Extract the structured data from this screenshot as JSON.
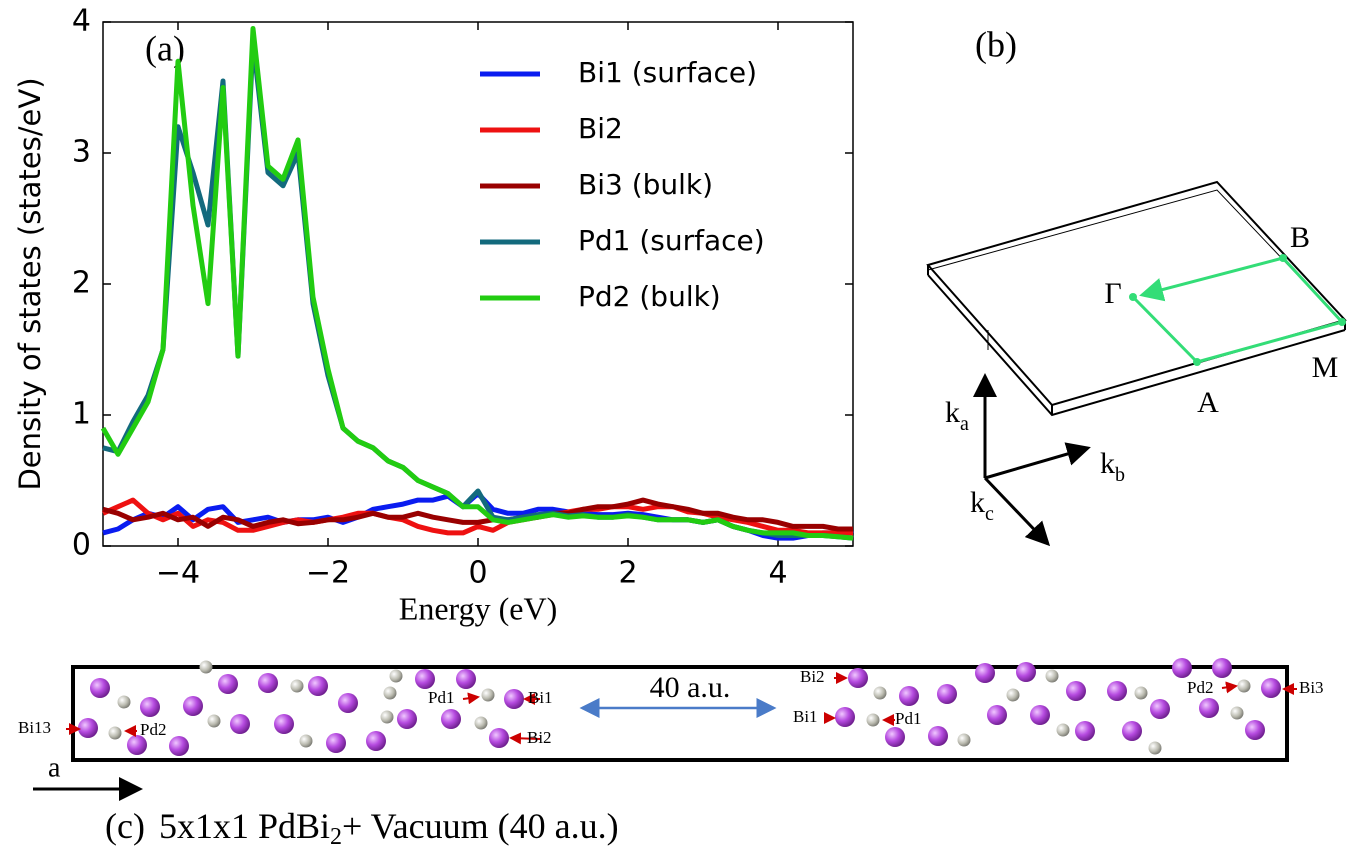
{
  "chart_data": {
    "type": "line",
    "panel_label": "(a)",
    "x_label": "Energy (eV)",
    "y_label": "Density of states (states/eV)",
    "x": [
      -5.0,
      -4.8,
      -4.6,
      -4.4,
      -4.2,
      -4.0,
      -3.8,
      -3.6,
      -3.4,
      -3.2,
      -3.0,
      -2.8,
      -2.6,
      -2.4,
      -2.2,
      -2.0,
      -1.8,
      -1.6,
      -1.4,
      -1.2,
      -1.0,
      -0.8,
      -0.6,
      -0.4,
      -0.2,
      0.0,
      0.2,
      0.4,
      0.6,
      0.8,
      1.0,
      1.2,
      1.4,
      1.6,
      1.8,
      2.0,
      2.2,
      2.4,
      2.6,
      2.8,
      3.0,
      3.2,
      3.4,
      3.6,
      3.8,
      4.0,
      4.2,
      4.4,
      4.6,
      4.8,
      5.0
    ],
    "series": [
      {
        "name": "Bi1 (surface)",
        "color": "#0a1cf0",
        "values": [
          0.1,
          0.13,
          0.2,
          0.25,
          0.22,
          0.3,
          0.2,
          0.28,
          0.3,
          0.18,
          0.2,
          0.22,
          0.18,
          0.2,
          0.2,
          0.22,
          0.18,
          0.22,
          0.28,
          0.3,
          0.32,
          0.35,
          0.35,
          0.38,
          0.3,
          0.4,
          0.28,
          0.25,
          0.25,
          0.28,
          0.28,
          0.26,
          0.25,
          0.24,
          0.24,
          0.25,
          0.24,
          0.22,
          0.2,
          0.2,
          0.18,
          0.2,
          0.15,
          0.12,
          0.08,
          0.06,
          0.06,
          0.08,
          0.1,
          0.1,
          0.12
        ]
      },
      {
        "name": "Bi2",
        "color": "#ee1111",
        "values": [
          0.25,
          0.3,
          0.35,
          0.25,
          0.2,
          0.25,
          0.15,
          0.2,
          0.18,
          0.12,
          0.12,
          0.15,
          0.18,
          0.2,
          0.18,
          0.2,
          0.22,
          0.25,
          0.25,
          0.22,
          0.2,
          0.15,
          0.12,
          0.1,
          0.1,
          0.15,
          0.12,
          0.18,
          0.2,
          0.22,
          0.24,
          0.26,
          0.28,
          0.28,
          0.3,
          0.3,
          0.28,
          0.3,
          0.3,
          0.26,
          0.25,
          0.22,
          0.2,
          0.18,
          0.15,
          0.12,
          0.12,
          0.1,
          0.1,
          0.1,
          0.1
        ]
      },
      {
        "name": "Bi3 (bulk)",
        "color": "#990000",
        "values": [
          0.28,
          0.25,
          0.2,
          0.22,
          0.25,
          0.2,
          0.22,
          0.15,
          0.22,
          0.2,
          0.15,
          0.18,
          0.2,
          0.17,
          0.18,
          0.2,
          0.2,
          0.22,
          0.25,
          0.22,
          0.22,
          0.25,
          0.22,
          0.2,
          0.18,
          0.18,
          0.2,
          0.2,
          0.22,
          0.22,
          0.25,
          0.25,
          0.28,
          0.3,
          0.3,
          0.32,
          0.35,
          0.32,
          0.3,
          0.28,
          0.25,
          0.25,
          0.22,
          0.2,
          0.2,
          0.18,
          0.15,
          0.15,
          0.15,
          0.13,
          0.13
        ]
      },
      {
        "name": "Pd1 (surface)",
        "color": "#136a7d",
        "values": [
          0.75,
          0.72,
          0.95,
          1.15,
          1.5,
          3.2,
          2.85,
          2.45,
          3.55,
          1.45,
          3.85,
          2.85,
          2.75,
          3.0,
          1.85,
          1.3,
          0.9,
          0.8,
          0.75,
          0.65,
          0.6,
          0.5,
          0.45,
          0.4,
          0.3,
          0.42,
          0.22,
          0.2,
          0.22,
          0.24,
          0.25,
          0.23,
          0.24,
          0.22,
          0.22,
          0.24,
          0.22,
          0.2,
          0.2,
          0.2,
          0.18,
          0.2,
          0.15,
          0.12,
          0.1,
          0.08,
          0.08,
          0.08,
          0.08,
          0.07,
          0.06
        ]
      },
      {
        "name": "Pd2 (bulk)",
        "color": "#22cc11",
        "values": [
          0.9,
          0.7,
          0.9,
          1.1,
          1.5,
          3.7,
          2.6,
          1.85,
          3.5,
          1.45,
          3.95,
          2.9,
          2.8,
          3.1,
          1.9,
          1.35,
          0.9,
          0.8,
          0.75,
          0.65,
          0.6,
          0.5,
          0.45,
          0.4,
          0.3,
          0.3,
          0.2,
          0.18,
          0.2,
          0.22,
          0.24,
          0.22,
          0.23,
          0.22,
          0.22,
          0.23,
          0.22,
          0.2,
          0.2,
          0.2,
          0.18,
          0.2,
          0.15,
          0.12,
          0.1,
          0.1,
          0.1,
          0.08,
          0.08,
          0.07,
          0.06
        ]
      }
    ],
    "xlim": [
      -5,
      5
    ],
    "ylim": [
      0,
      4
    ],
    "xticks": [
      {
        "value": -4,
        "label": "−4"
      },
      {
        "value": -2,
        "label": "−2"
      },
      0,
      2,
      4
    ],
    "yticks": [
      0,
      1,
      2,
      3,
      4
    ],
    "legend": "upper right"
  },
  "panel_b": {
    "label": "(b)",
    "points": [
      "B",
      "Γ",
      "M",
      "A"
    ],
    "axes": [
      {
        "main": "k",
        "sub": "a"
      },
      {
        "main": "k",
        "sub": "b"
      },
      {
        "main": "k",
        "sub": "c"
      }
    ]
  },
  "panel_c": {
    "gap_label": "40 a.u.",
    "direction": "a",
    "atom_labels": [
      "Bi13",
      "Pd2",
      "Pd1",
      "Bi1",
      "Bi2",
      "Bi2",
      "Bi1",
      "Pd1",
      "Pd2",
      "Bi3"
    ],
    "caption": {
      "label": "(c)",
      "text": "5x1x1 PdBi",
      "subscript": "2",
      "suffix": "+ Vacuum (40 a.u.)"
    }
  }
}
